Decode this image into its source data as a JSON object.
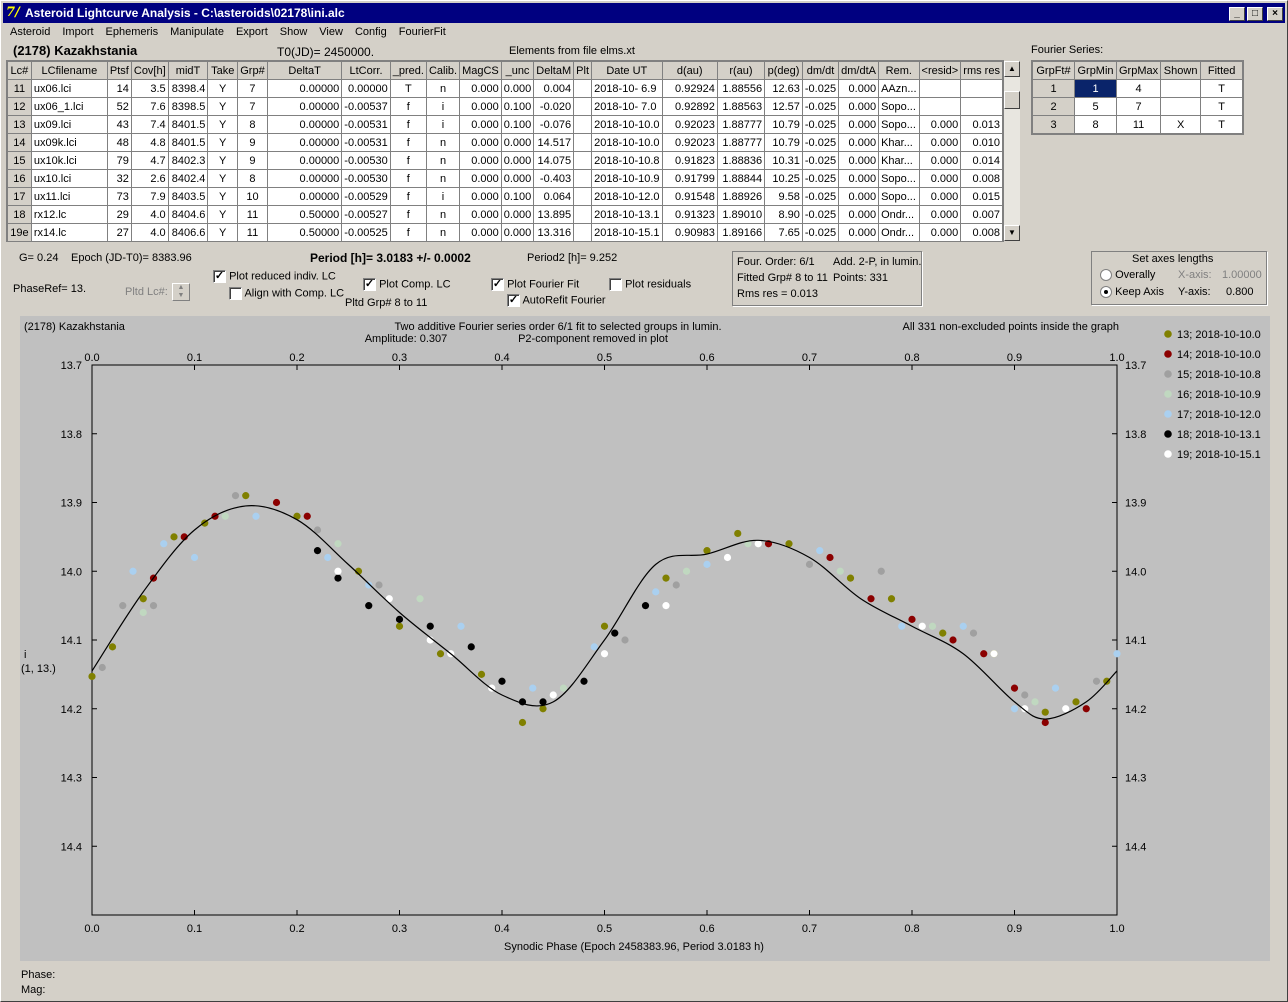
{
  "window": {
    "title": "Asteroid Lightcurve Analysis - C:\\asteroids\\02178\\ini.alc"
  },
  "menu": [
    "Asteroid",
    "Import",
    "Ephemeris",
    "Manipulate",
    "Export",
    "Show",
    "View",
    "Config",
    "FourierFit"
  ],
  "header": {
    "asteroid": "(2178) Kazakhstania",
    "t0": "T0(JD)= 2450000.",
    "elements": "Elements from file elms.xt"
  },
  "table": {
    "columns": [
      "Lc#",
      "LCfilename",
      "Ptsf",
      "Cov[h]",
      "midT",
      "Take",
      "Grp#",
      "DeltaT",
      "LtCorr.",
      "_pred.",
      "Calib.",
      "MagCS",
      "_unc",
      "DeltaM",
      "Plt",
      "Date UT",
      "d(au)",
      "r(au)",
      "p(deg)",
      "dm/dt",
      "dm/dtA",
      "Rem.",
      "<resid>",
      "rms res"
    ],
    "rows": [
      [
        "11",
        "ux06.lci",
        "14",
        "3.5",
        "8398.4",
        "Y",
        "7",
        "0.00000",
        "0.00000",
        "T",
        "n",
        "0.000",
        "0.000",
        "0.004",
        "",
        "2018-10- 6.9",
        "0.92924",
        "1.88556",
        "12.63",
        "-0.025",
        "0.000",
        "AAzn...",
        "",
        ""
      ],
      [
        "12",
        "ux06_1.lci",
        "52",
        "7.6",
        "8398.5",
        "Y",
        "7",
        "0.00000",
        "-0.00537",
        "f",
        "i",
        "0.000",
        "0.100",
        "-0.020",
        "",
        "2018-10- 7.0",
        "0.92892",
        "1.88563",
        "12.57",
        "-0.025",
        "0.000",
        "Sopo...",
        "",
        ""
      ],
      [
        "13",
        "ux09.lci",
        "43",
        "7.4",
        "8401.5",
        "Y",
        "8",
        "0.00000",
        "-0.00531",
        "f",
        "i",
        "0.000",
        "0.100",
        "-0.076",
        "",
        "2018-10-10.0",
        "0.92023",
        "1.88777",
        "10.79",
        "-0.025",
        "0.000",
        "Sopo...",
        "0.000",
        "0.013"
      ],
      [
        "14",
        "ux09k.lci",
        "48",
        "4.8",
        "8401.5",
        "Y",
        "9",
        "0.00000",
        "-0.00531",
        "f",
        "n",
        "0.000",
        "0.000",
        "14.517",
        "",
        "2018-10-10.0",
        "0.92023",
        "1.88777",
        "10.79",
        "-0.025",
        "0.000",
        "Khar...",
        "0.000",
        "0.010"
      ],
      [
        "15",
        "ux10k.lci",
        "79",
        "4.7",
        "8402.3",
        "Y",
        "9",
        "0.00000",
        "-0.00530",
        "f",
        "n",
        "0.000",
        "0.000",
        "14.075",
        "",
        "2018-10-10.8",
        "0.91823",
        "1.88836",
        "10.31",
        "-0.025",
        "0.000",
        "Khar...",
        "0.000",
        "0.014"
      ],
      [
        "16",
        "ux10.lci",
        "32",
        "2.6",
        "8402.4",
        "Y",
        "8",
        "0.00000",
        "-0.00530",
        "f",
        "n",
        "0.000",
        "0.000",
        "-0.403",
        "",
        "2018-10-10.9",
        "0.91799",
        "1.88844",
        "10.25",
        "-0.025",
        "0.000",
        "Sopo...",
        "0.000",
        "0.008"
      ],
      [
        "17",
        "ux11.lci",
        "73",
        "7.9",
        "8403.5",
        "Y",
        "10",
        "0.00000",
        "-0.00529",
        "f",
        "i",
        "0.000",
        "0.100",
        "0.064",
        "",
        "2018-10-12.0",
        "0.91548",
        "1.88926",
        "9.58",
        "-0.025",
        "0.000",
        "Sopo...",
        "0.000",
        "0.015"
      ],
      [
        "18",
        "rx12.lc",
        "29",
        "4.0",
        "8404.6",
        "Y",
        "11",
        "0.50000",
        "-0.00527",
        "f",
        "n",
        "0.000",
        "0.000",
        "13.895",
        "",
        "2018-10-13.1",
        "0.91323",
        "1.89010",
        "8.90",
        "-0.025",
        "0.000",
        "Ondr...",
        "0.000",
        "0.007"
      ],
      [
        "19e",
        "rx14.lc",
        "27",
        "4.0",
        "8406.6",
        "Y",
        "11",
        "0.50000",
        "-0.00525",
        "f",
        "n",
        "0.000",
        "0.000",
        "13.316",
        "",
        "2018-10-15.1",
        "0.90983",
        "1.89166",
        "7.65",
        "-0.025",
        "0.000",
        "Ondr...",
        "0.000",
        "0.008"
      ]
    ]
  },
  "fourier": {
    "label": "Fourier Series:",
    "columns": [
      "GrpFt#",
      "GrpMin",
      "GrpMax",
      "Shown",
      "Fitted"
    ],
    "rows": [
      [
        "1",
        "1",
        "4",
        "",
        "T"
      ],
      [
        "2",
        "5",
        "7",
        "",
        "T"
      ],
      [
        "3",
        "8",
        "11",
        "X",
        "T"
      ]
    ]
  },
  "info": {
    "g": "G= 0.24",
    "epoch": "Epoch (JD-T0)= 8383.96",
    "period": "Period [h]= 3.0183 +/- 0.0002",
    "period2": "Period2 [h]= 9.252",
    "phaseref": "PhaseRef= 13.",
    "pltd_lc": "Pltd Lc#:",
    "pltd_grp": "Pltd Grp#  8  to  11"
  },
  "checks": {
    "reduced": {
      "label": "Plot reduced indiv. LC",
      "checked": true
    },
    "align": {
      "label": "Align with Comp. LC",
      "checked": false
    },
    "comp": {
      "label": "Plot Comp. LC",
      "checked": true
    },
    "fourier": {
      "label": "Plot Fourier Fit",
      "checked": true
    },
    "residuals": {
      "label": "Plot residuals",
      "checked": false
    },
    "autorefit": {
      "label": "AutoRefit Fourier",
      "checked": true
    }
  },
  "fitinfo": {
    "order": "Four. Order:  6/1",
    "add": "Add. 2-P, in lumin.",
    "fitted": "Fitted Grp# 8 to 11",
    "points": "Points: 331",
    "rms": "Rms res      = 0.013"
  },
  "axes": {
    "title": "Set axes lengths",
    "overall": "Overally",
    "keep": "Keep Axis",
    "xaxis_label": "X-axis:",
    "xaxis_val": "1.00000",
    "yaxis_label": "Y-axis:",
    "yaxis_val": "0.800"
  },
  "status": {
    "phase": "Phase:",
    "mag": "Mag:"
  },
  "chart_data": {
    "type": "scatter",
    "title_left": "(2178) Kazakhstania",
    "title_center": "Two additive Fourier series order 6/1 fit to selected groups in lumin.",
    "amplitude": "Amplitude: 0.307",
    "p2": "P2-component removed in plot",
    "note_right": "All 331 non-excluded points inside the graph",
    "xlabel": "Synodic Phase (Epoch 2458383.96, Period 3.0183 h)",
    "ylabel": "i",
    "ylabel2": "(1, 13.)",
    "xlim": [
      0,
      1
    ],
    "ylim": [
      13.7,
      14.5
    ],
    "y_inverted": true,
    "xticks": [
      "0.0",
      "0.1",
      "0.2",
      "0.3",
      "0.4",
      "0.5",
      "0.6",
      "0.7",
      "0.8",
      "0.9",
      "1.0"
    ],
    "yticks": [
      "13.7",
      "13.8",
      "13.9",
      "14.0",
      "14.1",
      "14.2",
      "14.3",
      "14.4"
    ],
    "fit_curve": [
      [
        0,
        14.145
      ],
      [
        0.05,
        14.03
      ],
      [
        0.1,
        13.94
      ],
      [
        0.15,
        13.905
      ],
      [
        0.2,
        13.925
      ],
      [
        0.25,
        13.99
      ],
      [
        0.3,
        14.06
      ],
      [
        0.35,
        14.12
      ],
      [
        0.4,
        14.18
      ],
      [
        0.45,
        14.19
      ],
      [
        0.5,
        14.1
      ],
      [
        0.55,
        13.99
      ],
      [
        0.6,
        13.975
      ],
      [
        0.65,
        13.955
      ],
      [
        0.7,
        13.98
      ],
      [
        0.75,
        14.04
      ],
      [
        0.8,
        14.08
      ],
      [
        0.85,
        14.12
      ],
      [
        0.9,
        14.19
      ],
      [
        0.93,
        14.215
      ],
      [
        0.97,
        14.19
      ],
      [
        1.0,
        14.145
      ]
    ],
    "series": [
      {
        "name": "13; 2018-10-10.0",
        "color": "#808000",
        "points": [
          [
            0.0,
            14.153
          ],
          [
            0.02,
            14.11
          ],
          [
            0.05,
            14.04
          ],
          [
            0.08,
            13.95
          ],
          [
            0.11,
            13.93
          ],
          [
            0.15,
            13.89
          ],
          [
            0.2,
            13.92
          ],
          [
            0.26,
            14.0
          ],
          [
            0.3,
            14.08
          ],
          [
            0.34,
            14.12
          ],
          [
            0.38,
            14.15
          ],
          [
            0.42,
            14.22
          ],
          [
            0.44,
            14.2
          ],
          [
            0.5,
            14.08
          ],
          [
            0.56,
            14.01
          ],
          [
            0.6,
            13.97
          ],
          [
            0.63,
            13.945
          ],
          [
            0.68,
            13.96
          ],
          [
            0.74,
            14.01
          ],
          [
            0.78,
            14.04
          ],
          [
            0.83,
            14.09
          ],
          [
            0.88,
            14.12
          ],
          [
            0.93,
            14.205
          ],
          [
            0.96,
            14.19
          ],
          [
            0.99,
            14.16
          ]
        ]
      },
      {
        "name": "14; 2018-10-10.0",
        "color": "#8b0000",
        "points": [
          [
            0.06,
            14.01
          ],
          [
            0.09,
            13.95
          ],
          [
            0.12,
            13.92
          ],
          [
            0.18,
            13.9
          ],
          [
            0.21,
            13.92
          ],
          [
            0.66,
            13.96
          ],
          [
            0.72,
            13.98
          ],
          [
            0.76,
            14.04
          ],
          [
            0.8,
            14.07
          ],
          [
            0.84,
            14.1
          ],
          [
            0.87,
            14.12
          ],
          [
            0.9,
            14.17
          ],
          [
            0.93,
            14.22
          ],
          [
            0.97,
            14.2
          ]
        ]
      },
      {
        "name": "15; 2018-10-10.8",
        "color": "#a0a0a0",
        "points": [
          [
            0.01,
            14.14
          ],
          [
            0.03,
            14.05
          ],
          [
            0.06,
            14.05
          ],
          [
            0.14,
            13.89
          ],
          [
            0.22,
            13.94
          ],
          [
            0.28,
            14.02
          ],
          [
            0.4,
            14.16
          ],
          [
            0.52,
            14.1
          ],
          [
            0.57,
            14.02
          ],
          [
            0.7,
            13.99
          ],
          [
            0.77,
            14.0
          ],
          [
            0.86,
            14.09
          ],
          [
            0.91,
            14.18
          ],
          [
            0.98,
            14.16
          ]
        ]
      },
      {
        "name": "16; 2018-10-10.9",
        "color": "#c0d8c0",
        "points": [
          [
            0.05,
            14.06
          ],
          [
            0.13,
            13.92
          ],
          [
            0.24,
            13.96
          ],
          [
            0.32,
            14.04
          ],
          [
            0.46,
            14.17
          ],
          [
            0.58,
            14.0
          ],
          [
            0.64,
            13.96
          ],
          [
            0.73,
            14.0
          ],
          [
            0.82,
            14.08
          ],
          [
            0.92,
            14.19
          ]
        ]
      },
      {
        "name": "17; 2018-10-12.0",
        "color": "#aad0f0",
        "points": [
          [
            0.04,
            14.0
          ],
          [
            0.07,
            13.96
          ],
          [
            0.1,
            13.98
          ],
          [
            0.16,
            13.92
          ],
          [
            0.23,
            13.98
          ],
          [
            0.27,
            14.02
          ],
          [
            0.36,
            14.08
          ],
          [
            0.43,
            14.17
          ],
          [
            0.49,
            14.11
          ],
          [
            0.55,
            14.03
          ],
          [
            0.6,
            13.99
          ],
          [
            0.71,
            13.97
          ],
          [
            0.79,
            14.08
          ],
          [
            0.85,
            14.08
          ],
          [
            0.9,
            14.2
          ],
          [
            0.94,
            14.17
          ],
          [
            1.0,
            14.12
          ]
        ]
      },
      {
        "name": "18; 2018-10-13.1",
        "color": "#000000",
        "points": [
          [
            0.22,
            13.97
          ],
          [
            0.24,
            14.01
          ],
          [
            0.27,
            14.05
          ],
          [
            0.3,
            14.07
          ],
          [
            0.33,
            14.08
          ],
          [
            0.37,
            14.11
          ],
          [
            0.4,
            14.16
          ],
          [
            0.42,
            14.19
          ],
          [
            0.44,
            14.19
          ],
          [
            0.48,
            14.16
          ],
          [
            0.51,
            14.09
          ],
          [
            0.54,
            14.05
          ]
        ]
      },
      {
        "name": "19; 2018-10-15.1",
        "color": "#ffffff",
        "points": [
          [
            0.24,
            14.0
          ],
          [
            0.29,
            14.04
          ],
          [
            0.33,
            14.1
          ],
          [
            0.35,
            14.12
          ],
          [
            0.39,
            14.17
          ],
          [
            0.45,
            14.18
          ],
          [
            0.5,
            14.12
          ],
          [
            0.56,
            14.05
          ],
          [
            0.62,
            13.98
          ],
          [
            0.65,
            13.96
          ],
          [
            0.81,
            14.08
          ],
          [
            0.88,
            14.12
          ],
          [
            0.91,
            14.2
          ],
          [
            0.95,
            14.2
          ]
        ]
      }
    ]
  }
}
